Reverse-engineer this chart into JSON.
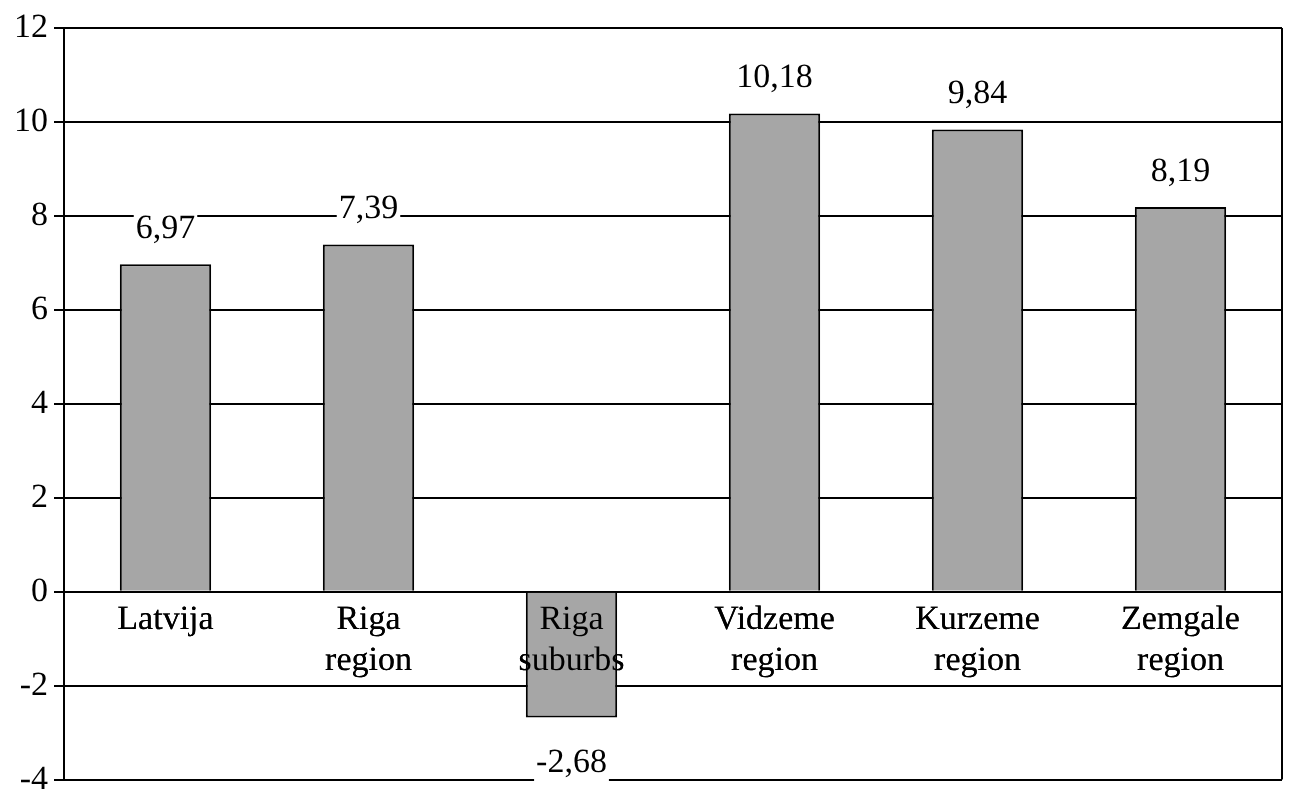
{
  "chart_data": {
    "type": "bar",
    "categories": [
      "Latvija",
      "Riga region",
      "Riga suburbs",
      "Vidzeme region",
      "Kurzeme region",
      "Zemgale region"
    ],
    "values": [
      6.97,
      7.39,
      -2.68,
      10.18,
      9.84,
      8.19
    ],
    "value_labels": [
      "6,97",
      "7,39",
      "-2,68",
      "10,18",
      "9,84",
      "8,19"
    ],
    "color": "#a6a6a6",
    "ylim": [
      -4,
      12
    ],
    "yticks": [
      -4,
      -2,
      0,
      2,
      4,
      6,
      8,
      10,
      12
    ],
    "grid": "y",
    "legend": false
  }
}
